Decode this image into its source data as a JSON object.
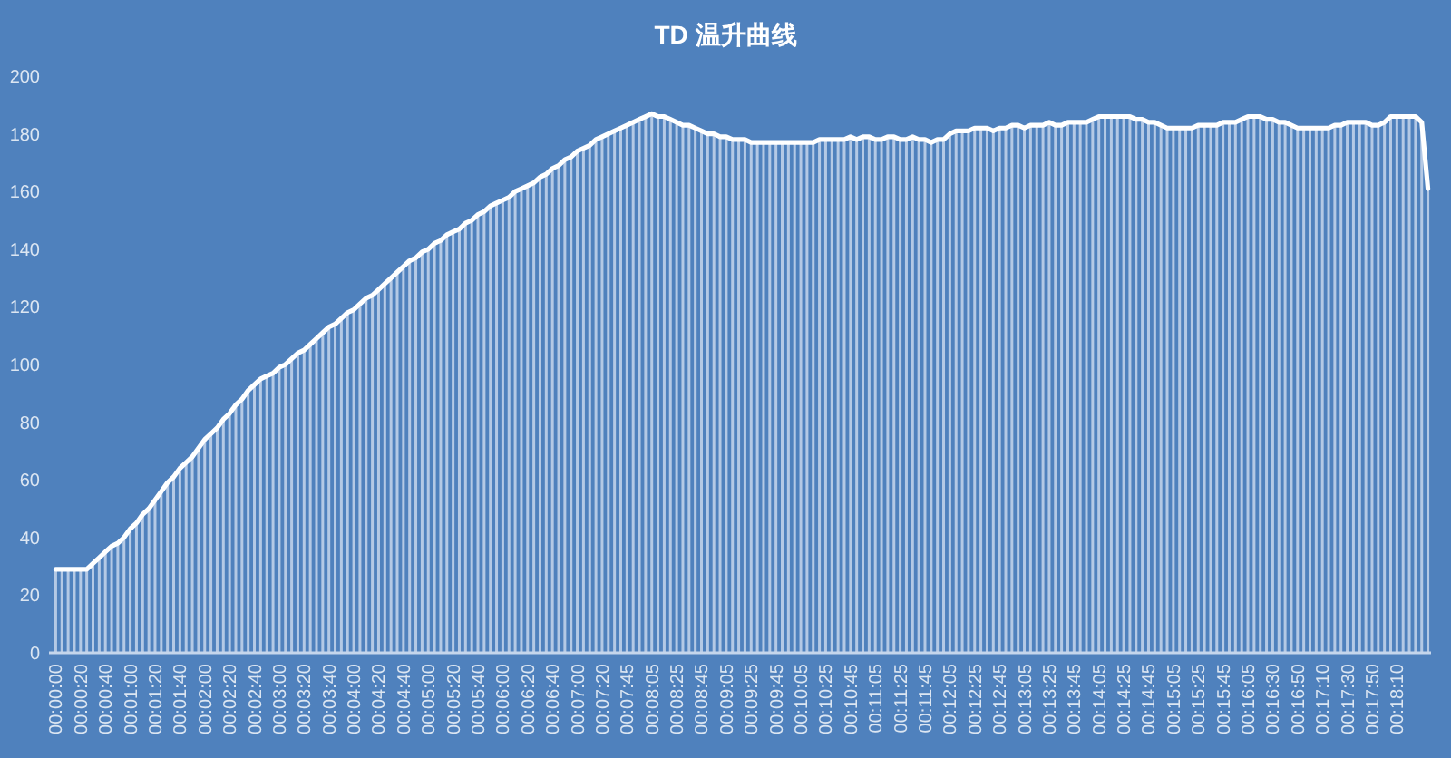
{
  "chart_data": {
    "type": "bar",
    "title": "TD 温升曲线",
    "categories": [
      "00:00:00",
      null,
      null,
      null,
      "00:00:20",
      null,
      null,
      null,
      "00:00:40",
      null,
      null,
      null,
      "00:01:00",
      null,
      null,
      null,
      "00:01:20",
      null,
      null,
      null,
      "00:01:40",
      null,
      null,
      null,
      "00:02:00",
      null,
      null,
      null,
      "00:02:20",
      null,
      null,
      null,
      "00:02:40",
      null,
      null,
      null,
      "00:03:00",
      null,
      null,
      null,
      "00:03:20",
      null,
      null,
      null,
      "00:03:40",
      null,
      null,
      null,
      "00:04:00",
      null,
      null,
      null,
      "00:04:20",
      null,
      null,
      null,
      "00:04:40",
      null,
      null,
      null,
      "00:05:00",
      null,
      null,
      null,
      "00:05:20",
      null,
      null,
      null,
      "00:05:40",
      null,
      null,
      null,
      "00:06:00",
      null,
      null,
      null,
      "00:06:20",
      null,
      null,
      null,
      "00:06:40",
      null,
      null,
      null,
      "00:07:00",
      null,
      null,
      null,
      "00:07:20",
      null,
      null,
      null,
      "00:07:45",
      null,
      null,
      null,
      "00:08:05",
      null,
      null,
      null,
      "00:08:25",
      null,
      null,
      null,
      "00:08:45",
      null,
      null,
      null,
      "00:09:05",
      null,
      null,
      null,
      "00:09:25",
      null,
      null,
      null,
      "00:09:45",
      null,
      null,
      null,
      "00:10:05",
      null,
      null,
      null,
      "00:10:25",
      null,
      null,
      null,
      "00:10:45",
      null,
      null,
      null,
      "00:11:05",
      null,
      null,
      null,
      "00:11:25",
      null,
      null,
      null,
      "00:11:45",
      null,
      null,
      null,
      "00:12:05",
      null,
      null,
      null,
      "00:12:25",
      null,
      null,
      null,
      "00:12:45",
      null,
      null,
      null,
      "00:13:05",
      null,
      null,
      null,
      "00:13:25",
      null,
      null,
      null,
      "00:13:45",
      null,
      null,
      null,
      "00:14:05",
      null,
      null,
      null,
      "00:14:25",
      null,
      null,
      null,
      "00:14:45",
      null,
      null,
      null,
      "00:15:05",
      null,
      null,
      null,
      "00:15:25",
      null,
      null,
      null,
      "00:15:45",
      null,
      null,
      null,
      "00:16:05",
      null,
      null,
      null,
      "00:16:30",
      null,
      null,
      null,
      "00:16:50",
      null,
      null,
      null,
      "00:17:10",
      null,
      null,
      null,
      "00:17:30",
      null,
      null,
      null,
      "00:17:50",
      null,
      null,
      null,
      "00:18:10",
      null,
      null,
      null,
      null,
      null
    ],
    "series": [
      {
        "color": "#c5d6ec",
        "values": [
          29,
          29,
          29,
          29,
          29,
          29,
          31,
          33,
          35,
          37,
          38,
          40,
          43,
          45,
          48,
          50,
          53,
          56,
          59,
          61,
          64,
          66,
          68,
          71,
          74,
          76,
          78,
          81,
          83,
          86,
          88,
          91,
          93,
          95,
          96,
          97,
          99,
          100,
          102,
          104,
          105,
          107,
          109,
          111,
          113,
          114,
          116,
          118,
          119,
          121,
          123,
          124,
          126,
          128,
          130,
          132,
          134,
          136,
          137,
          139,
          140,
          142,
          143,
          145,
          146,
          147,
          149,
          150,
          152,
          153,
          155,
          156,
          157,
          158,
          160,
          161,
          162,
          163,
          165,
          166,
          168,
          169,
          171,
          172,
          174,
          175,
          176,
          178,
          179,
          180,
          181,
          182,
          183,
          184,
          185,
          186,
          187,
          186,
          186,
          185,
          184,
          183,
          183,
          182,
          181,
          180,
          180,
          179,
          179,
          178,
          178,
          178,
          177,
          177,
          177,
          177,
          177,
          177,
          177,
          177,
          177,
          177,
          177,
          178,
          178,
          178,
          178,
          178,
          179,
          178,
          179,
          179,
          178,
          178,
          179,
          179,
          178,
          178,
          179,
          178,
          178,
          177,
          178,
          178,
          180,
          181,
          181,
          181,
          182,
          182,
          182,
          181,
          182,
          182,
          183,
          183,
          182,
          183,
          183,
          183,
          184,
          183,
          183,
          184,
          184,
          184,
          184,
          185,
          186,
          186,
          186,
          186,
          186,
          186,
          185,
          185,
          184,
          184,
          183,
          182,
          182,
          182,
          182,
          182,
          183,
          183,
          183,
          183,
          184,
          184,
          184,
          185,
          186,
          186,
          186,
          185,
          185,
          184,
          184,
          183,
          182,
          182,
          182,
          182,
          182,
          182,
          183,
          183,
          184,
          184,
          184,
          184,
          183,
          183,
          184,
          186,
          186,
          186,
          186,
          186,
          184,
          161
        ]
      },
      {
        "type": "line",
        "color": "#ffffff",
        "values": [
          29,
          29,
          29,
          29,
          29,
          29,
          31,
          33,
          35,
          37,
          38,
          40,
          43,
          45,
          48,
          50,
          53,
          56,
          59,
          61,
          64,
          66,
          68,
          71,
          74,
          76,
          78,
          81,
          83,
          86,
          88,
          91,
          93,
          95,
          96,
          97,
          99,
          100,
          102,
          104,
          105,
          107,
          109,
          111,
          113,
          114,
          116,
          118,
          119,
          121,
          123,
          124,
          126,
          128,
          130,
          132,
          134,
          136,
          137,
          139,
          140,
          142,
          143,
          145,
          146,
          147,
          149,
          150,
          152,
          153,
          155,
          156,
          157,
          158,
          160,
          161,
          162,
          163,
          165,
          166,
          168,
          169,
          171,
          172,
          174,
          175,
          176,
          178,
          179,
          180,
          181,
          182,
          183,
          184,
          185,
          186,
          187,
          186,
          186,
          185,
          184,
          183,
          183,
          182,
          181,
          180,
          180,
          179,
          179,
          178,
          178,
          178,
          177,
          177,
          177,
          177,
          177,
          177,
          177,
          177,
          177,
          177,
          177,
          178,
          178,
          178,
          178,
          178,
          179,
          178,
          179,
          179,
          178,
          178,
          179,
          179,
          178,
          178,
          179,
          178,
          178,
          177,
          178,
          178,
          180,
          181,
          181,
          181,
          182,
          182,
          182,
          181,
          182,
          182,
          183,
          183,
          182,
          183,
          183,
          183,
          184,
          183,
          183,
          184,
          184,
          184,
          184,
          185,
          186,
          186,
          186,
          186,
          186,
          186,
          185,
          185,
          184,
          184,
          183,
          182,
          182,
          182,
          182,
          182,
          183,
          183,
          183,
          183,
          184,
          184,
          184,
          185,
          186,
          186,
          186,
          185,
          185,
          184,
          184,
          183,
          182,
          182,
          182,
          182,
          182,
          182,
          183,
          183,
          184,
          184,
          184,
          184,
          183,
          183,
          184,
          186,
          186,
          186,
          186,
          186,
          184,
          161
        ]
      }
    ],
    "ylim": [
      0,
      200
    ],
    "yticks": [
      0,
      20,
      40,
      60,
      80,
      100,
      120,
      140,
      160,
      180,
      200
    ],
    "grid": false
  }
}
